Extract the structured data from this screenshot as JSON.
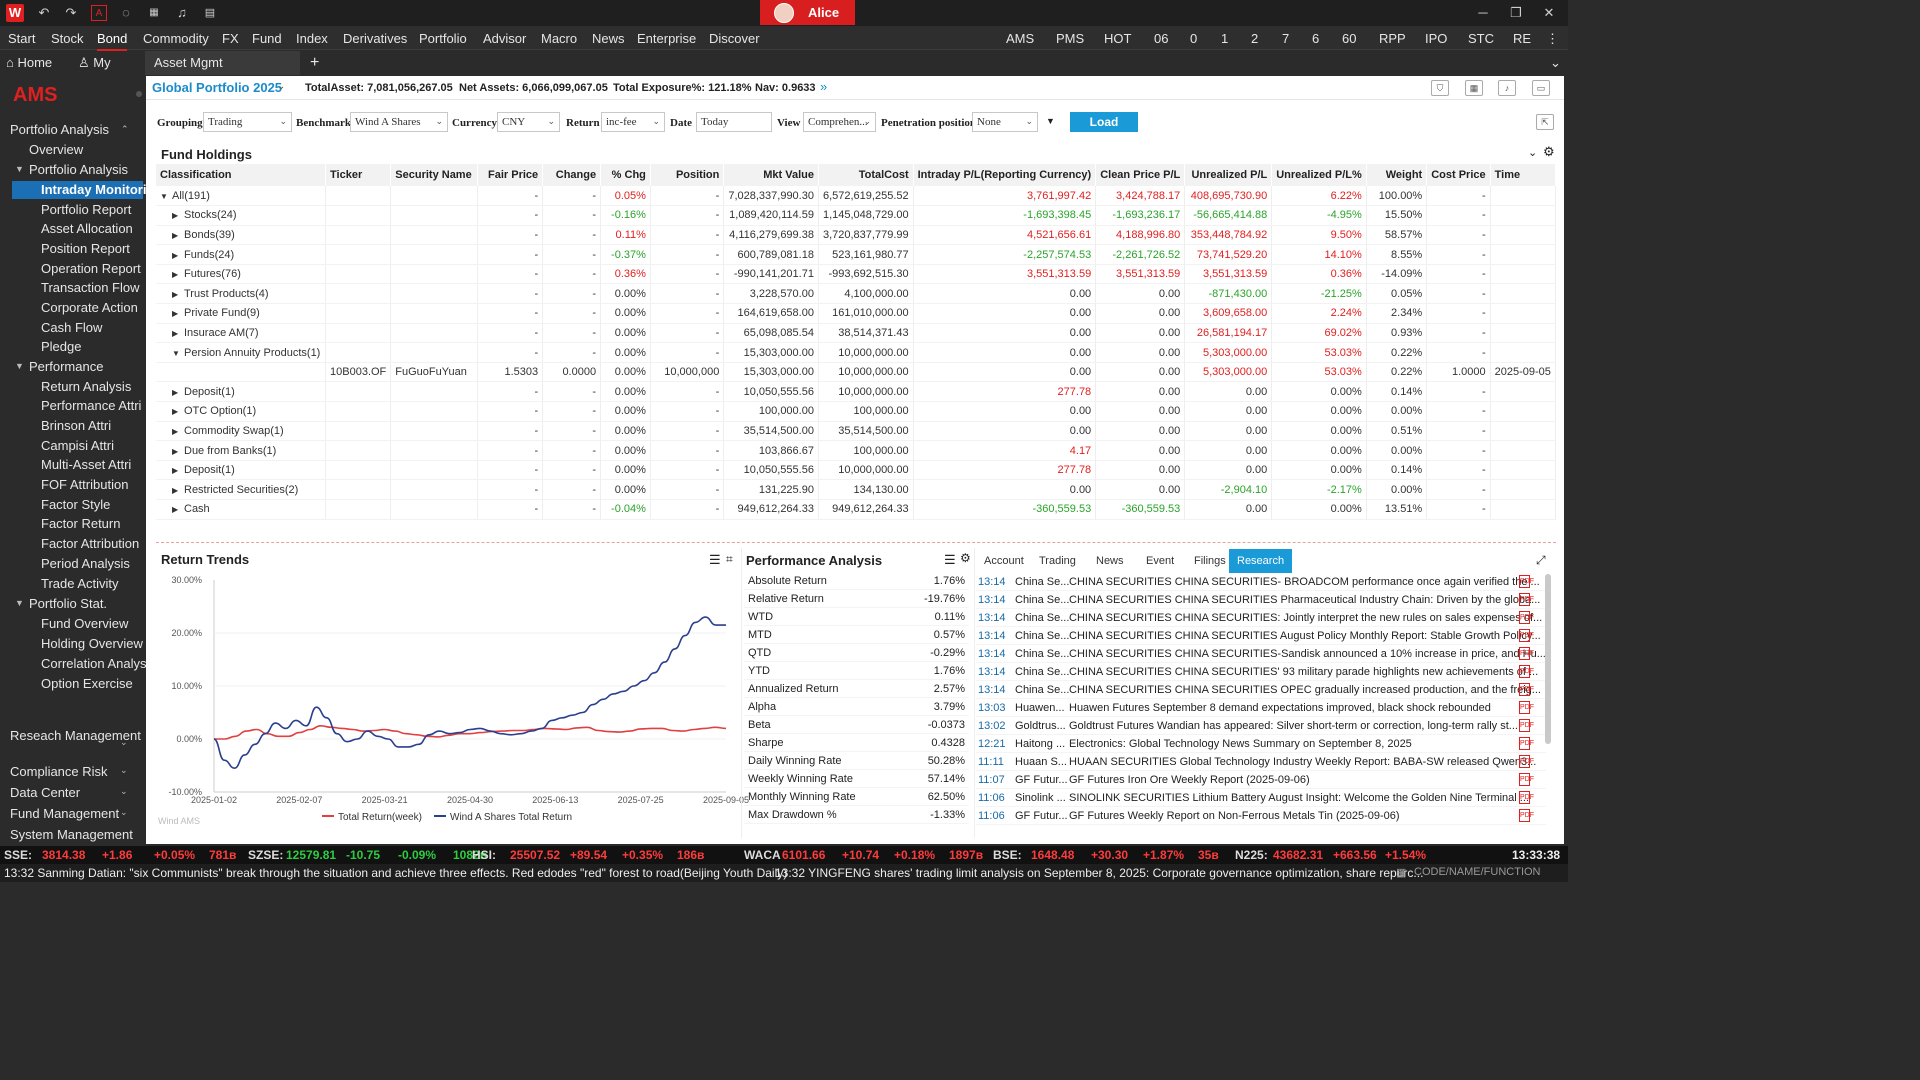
{
  "titlebar": {
    "user": "Alice",
    "logo": "W"
  },
  "menu": {
    "left": [
      "Start",
      "Stock",
      "Bond",
      "Commodity",
      "FX",
      "Fund",
      "Index",
      "Derivatives",
      "Portfolio",
      "Advisor",
      "Macro",
      "News",
      "Enterprise",
      "Discover"
    ],
    "right": [
      "AMS",
      "PMS",
      "HOT",
      "06",
      "0",
      "1",
      "2",
      "7",
      "6",
      "60",
      "RPP",
      "IPO",
      "STC",
      "RE"
    ],
    "active": "Bond"
  },
  "tabs": {
    "home": "Home",
    "my": "My",
    "asset": "Asset Mgmt",
    "add": "+"
  },
  "sidebar": {
    "brand": "AMS",
    "items": [
      {
        "label": "Portfolio Analysis",
        "level": 0,
        "caret": "up"
      },
      {
        "label": "Overview",
        "level": 1
      },
      {
        "label": "Portfolio Analysis",
        "level": 1,
        "caret": "down"
      },
      {
        "label": "Intraday Monitori",
        "level": 2,
        "selected": true
      },
      {
        "label": "Portfolio Report",
        "level": 2
      },
      {
        "label": "Asset Allocation",
        "level": 2
      },
      {
        "label": "Position Report",
        "level": 2
      },
      {
        "label": "Operation Report",
        "level": 2
      },
      {
        "label": "Transaction Flow",
        "level": 2
      },
      {
        "label": "Corporate Action",
        "level": 2
      },
      {
        "label": "Cash Flow",
        "level": 2
      },
      {
        "label": "Pledge",
        "level": 2
      },
      {
        "label": "Performance",
        "level": 1,
        "caret": "down"
      },
      {
        "label": "Return Analysis",
        "level": 2
      },
      {
        "label": "Performance Attri",
        "level": 2
      },
      {
        "label": "Brinson Attri",
        "level": 2
      },
      {
        "label": "Campisi Attri",
        "level": 2
      },
      {
        "label": "Multi-Asset Attri",
        "level": 2
      },
      {
        "label": "FOF Attribution",
        "level": 2
      },
      {
        "label": "Factor Style",
        "level": 2
      },
      {
        "label": "Factor Return",
        "level": 2
      },
      {
        "label": "Factor Attribution",
        "level": 2
      },
      {
        "label": "Period Analysis",
        "level": 2
      },
      {
        "label": "Trade Activity",
        "level": 2
      },
      {
        "label": "Portfolio Stat.",
        "level": 1,
        "caret": "down"
      },
      {
        "label": "Fund Overview",
        "level": 2
      },
      {
        "label": "Holding Overview",
        "level": 2
      },
      {
        "label": "Correlation Analysi",
        "level": 2
      },
      {
        "label": "Option Exercise",
        "level": 2
      }
    ],
    "bottom": [
      "Reseach Management",
      "Compliance Risk",
      "Data Center",
      "Fund Management",
      "System Management"
    ]
  },
  "header": {
    "portfolio": "Global Portfolio 2025",
    "total_asset": "TotalAsset: 7,081,056,267.05",
    "net_assets": "Net Assets: 6,066,099,067.05",
    "total_exposure": "Total Exposure%: 121.18%",
    "nav": "Nav: 0.9633"
  },
  "filters": {
    "grouping_label": "Grouping",
    "grouping": "Trading",
    "benchmark_label": "Benchmark",
    "benchmark": "Wind A Shares",
    "currency_label": "Currency",
    "currency": "CNY",
    "return_label": "Return",
    "return": "inc-fee",
    "date_label": "Date",
    "date": "Today",
    "view_label": "View",
    "view": "Comprehen...",
    "penetration_label": "Penetration position",
    "penetration": "None",
    "load": "Load"
  },
  "holdings": {
    "title": "Fund Holdings",
    "columns": [
      "Classification",
      "Ticker",
      "Security Name",
      "Fair Price",
      "Change",
      "% Chg",
      "Position",
      "Mkt Value",
      "TotalCost",
      "Intraday P/L(Reporting Currency)",
      "Clean Price P/L",
      "Unrealized P/L",
      "Unrealized P/L%",
      "Weight",
      "Cost Price",
      "Time"
    ],
    "rows": [
      {
        "tri": "down",
        "ind": 0,
        "c": [
          "All(191)",
          "",
          "",
          "-",
          "-",
          "0.05%",
          "-",
          "7,028,337,990.30",
          "6,572,619,255.52",
          "3,761,997.42",
          "3,424,788.17",
          "408,695,730.90",
          "6.22%",
          "100.00%",
          "-",
          ""
        ]
      },
      {
        "tri": "right",
        "ind": 1,
        "c": [
          "Stocks(24)",
          "",
          "",
          "-",
          "-",
          "-0.16%",
          "-",
          "1,089,420,114.59",
          "1,145,048,729.00",
          "-1,693,398.45",
          "-1,693,236.17",
          "-56,665,414.88",
          "-4.95%",
          "15.50%",
          "-",
          ""
        ]
      },
      {
        "tri": "right",
        "ind": 1,
        "c": [
          "Bonds(39)",
          "",
          "",
          "-",
          "-",
          "0.11%",
          "-",
          "4,116,279,699.38",
          "3,720,837,779.99",
          "4,521,656.61",
          "4,188,996.80",
          "353,448,784.92",
          "9.50%",
          "58.57%",
          "-",
          ""
        ]
      },
      {
        "tri": "right",
        "ind": 1,
        "c": [
          "Funds(24)",
          "",
          "",
          "-",
          "-",
          "-0.37%",
          "-",
          "600,789,081.18",
          "523,161,980.77",
          "-2,257,574.53",
          "-2,261,726.52",
          "73,741,529.20",
          "14.10%",
          "8.55%",
          "-",
          ""
        ]
      },
      {
        "tri": "right",
        "ind": 1,
        "c": [
          "Futures(76)",
          "",
          "",
          "-",
          "-",
          "0.36%",
          "-",
          "-990,141,201.71",
          "-993,692,515.30",
          "3,551,313.59",
          "3,551,313.59",
          "3,551,313.59",
          "0.36%",
          "-14.09%",
          "-",
          ""
        ]
      },
      {
        "tri": "right",
        "ind": 1,
        "c": [
          "Trust Products(4)",
          "",
          "",
          "-",
          "-",
          "0.00%",
          "-",
          "3,228,570.00",
          "4,100,000.00",
          "0.00",
          "0.00",
          "-871,430.00",
          "-21.25%",
          "0.05%",
          "-",
          ""
        ]
      },
      {
        "tri": "right",
        "ind": 1,
        "c": [
          "Private Fund(9)",
          "",
          "",
          "-",
          "-",
          "0.00%",
          "-",
          "164,619,658.00",
          "161,010,000.00",
          "0.00",
          "0.00",
          "3,609,658.00",
          "2.24%",
          "2.34%",
          "-",
          ""
        ]
      },
      {
        "tri": "right",
        "ind": 1,
        "c": [
          "Insurace AM(7)",
          "",
          "",
          "-",
          "-",
          "0.00%",
          "-",
          "65,098,085.54",
          "38,514,371.43",
          "0.00",
          "0.00",
          "26,581,194.17",
          "69.02%",
          "0.93%",
          "-",
          ""
        ]
      },
      {
        "tri": "down",
        "ind": 1,
        "c": [
          "Persion Annuity Products(1)",
          "",
          "",
          "-",
          "-",
          "0.00%",
          "-",
          "15,303,000.00",
          "10,000,000.00",
          "0.00",
          "0.00",
          "5,303,000.00",
          "53.03%",
          "0.22%",
          "-",
          ""
        ]
      },
      {
        "tri": "",
        "ind": 2,
        "c": [
          "",
          "10B003.OF",
          "FuGuoFuYuan",
          "1.5303",
          "0.0000",
          "0.00%",
          "10,000,000",
          "15,303,000.00",
          "10,000,000.00",
          "0.00",
          "0.00",
          "5,303,000.00",
          "53.03%",
          "0.22%",
          "1.0000",
          "2025-09-05"
        ]
      },
      {
        "tri": "right",
        "ind": 1,
        "c": [
          "Deposit(1)",
          "",
          "",
          "-",
          "-",
          "0.00%",
          "-",
          "10,050,555.56",
          "10,000,000.00",
          "277.78",
          "0.00",
          "0.00",
          "0.00%",
          "0.14%",
          "-",
          ""
        ]
      },
      {
        "tri": "right",
        "ind": 1,
        "c": [
          "OTC Option(1)",
          "",
          "",
          "-",
          "-",
          "0.00%",
          "-",
          "100,000.00",
          "100,000.00",
          "0.00",
          "0.00",
          "0.00",
          "0.00%",
          "0.00%",
          "-",
          ""
        ]
      },
      {
        "tri": "right",
        "ind": 1,
        "c": [
          "Commodity Swap(1)",
          "",
          "",
          "-",
          "-",
          "0.00%",
          "-",
          "35,514,500.00",
          "35,514,500.00",
          "0.00",
          "0.00",
          "0.00",
          "0.00%",
          "0.51%",
          "-",
          ""
        ]
      },
      {
        "tri": "right",
        "ind": 1,
        "c": [
          "Due from Banks(1)",
          "",
          "",
          "-",
          "-",
          "0.00%",
          "-",
          "103,866.67",
          "100,000.00",
          "4.17",
          "0.00",
          "0.00",
          "0.00%",
          "0.00%",
          "-",
          ""
        ]
      },
      {
        "tri": "right",
        "ind": 1,
        "c": [
          "Deposit(1)",
          "",
          "",
          "-",
          "-",
          "0.00%",
          "-",
          "10,050,555.56",
          "10,000,000.00",
          "277.78",
          "0.00",
          "0.00",
          "0.00%",
          "0.14%",
          "-",
          ""
        ]
      },
      {
        "tri": "right",
        "ind": 1,
        "c": [
          "Restricted Securities(2)",
          "",
          "",
          "-",
          "-",
          "0.00%",
          "-",
          "131,225.90",
          "134,130.00",
          "0.00",
          "0.00",
          "-2,904.10",
          "-2.17%",
          "0.00%",
          "-",
          ""
        ]
      },
      {
        "tri": "right",
        "ind": 1,
        "c": [
          "Cash",
          "",
          "",
          "-",
          "-",
          "-0.04%",
          "-",
          "949,612,264.33",
          "949,612,264.33",
          "-360,559.53",
          "-360,559.53",
          "0.00",
          "0.00%",
          "13.51%",
          "-",
          ""
        ]
      }
    ]
  },
  "return_trends": {
    "title": "Return Trends",
    "watermark": "Wind AMS"
  },
  "chart_data": {
    "type": "line",
    "title": "Return Trends",
    "x_ticks": [
      "2025-01-02",
      "2025-02-07",
      "2025-03-21",
      "2025-04-30",
      "2025-06-13",
      "2025-07-25",
      "2025-09-05"
    ],
    "y_ticks": [
      "30.00%",
      "20.00%",
      "10.00%",
      "0.00%",
      "-10.00%"
    ],
    "ylim": [
      -10,
      30
    ],
    "legend_position": "bottom",
    "series": [
      {
        "name": "Total Return(week)",
        "color": "#e04040",
        "values": [
          0.0,
          0.0,
          0.5,
          1.5,
          1.8,
          1.0,
          0.5,
          0.5,
          1.2,
          1.8,
          2.5,
          2.2,
          2.0,
          1.8,
          1.5,
          1.6,
          1.8,
          1.5,
          1.0,
          0.8,
          0.5,
          0.4,
          0.7,
          1.0,
          1.0,
          1.2,
          1.4,
          1.5,
          1.6,
          1.6,
          1.8,
          2.0,
          1.9,
          1.8,
          2.1,
          2.2,
          1.6,
          1.4,
          1.3,
          1.5,
          1.9,
          2.0,
          2.0,
          1.6,
          1.5,
          1.8,
          2.0,
          2.2,
          2.0
        ]
      },
      {
        "name": "Wind A Shares Total Return",
        "color": "#2a3f8f",
        "values": [
          0.0,
          -4.0,
          -5.5,
          -3.0,
          -1.0,
          1.0,
          3.0,
          2.0,
          3.5,
          2.5,
          6.0,
          4.0,
          1.0,
          -0.5,
          0.0,
          1.5,
          0.5,
          0.0,
          -1.5,
          -1.5,
          -1.0,
          0.8,
          1.5,
          1.0,
          1.2,
          1.8,
          2.0,
          1.5,
          1.0,
          0.8,
          1.0,
          1.5,
          2.0,
          3.5,
          4.0,
          4.5,
          5.0,
          6.5,
          7.5,
          8.5,
          9.0,
          10.0,
          11.0,
          12.5,
          14.5,
          17.0,
          19.5,
          22.0,
          23.0,
          21.5,
          21.5
        ]
      }
    ]
  },
  "performance": {
    "title": "Performance Analysis",
    "rows": [
      {
        "k": "Absolute Return",
        "v": "1.76%"
      },
      {
        "k": "Relative Return",
        "v": "-19.76%"
      },
      {
        "k": "WTD",
        "v": "0.11%"
      },
      {
        "k": "MTD",
        "v": "0.57%"
      },
      {
        "k": "QTD",
        "v": "-0.29%"
      },
      {
        "k": "YTD",
        "v": "1.76%"
      },
      {
        "k": "Annualized Return",
        "v": "2.57%"
      },
      {
        "k": "Alpha",
        "v": "3.79%"
      },
      {
        "k": "Beta",
        "v": "-0.0373"
      },
      {
        "k": "Sharpe",
        "v": "0.4328"
      },
      {
        "k": "Daily Winning Rate",
        "v": "50.28%"
      },
      {
        "k": "Weekly Winning Rate",
        "v": "57.14%"
      },
      {
        "k": "Monthly Winning Rate",
        "v": "62.50%"
      },
      {
        "k": "Max Drawdown %",
        "v": "-1.33%"
      }
    ]
  },
  "research": {
    "tabs": [
      "Account",
      "Trading",
      "News",
      "Event",
      "Filings",
      "Research"
    ],
    "active": "Research",
    "pdf": "PDF",
    "rows": [
      {
        "t": "13:14",
        "s": "China Se...",
        "h": "CHINA SECURITIES CHINA SECURITIES- BROADCOM performance once again verified the ..."
      },
      {
        "t": "13:14",
        "s": "China Se...",
        "h": "CHINA SECURITIES CHINA SECURITIES Pharmaceutical Industry Chain: Driven by the globa..."
      },
      {
        "t": "13:14",
        "s": "China Se...",
        "h": "CHINA SECURITIES CHINA SECURITIES: Jointly interpret the new rules on sales expenses of..."
      },
      {
        "t": "13:14",
        "s": "China Se...",
        "h": "CHINA SECURITIES CHINA SECURITIES August Policy Monthly Report: Stable Growth Policy..."
      },
      {
        "t": "13:14",
        "s": "China Se...",
        "h": "CHINA SECURITIES CHINA SECURITIES-Sandisk announced a 10% increase in price, and Hu..."
      },
      {
        "t": "13:14",
        "s": "China Se...",
        "h": "CHINA SECURITIES CHINA SECURITIES' 93 military parade highlights new achievements of ..."
      },
      {
        "t": "13:14",
        "s": "China Se...",
        "h": "CHINA SECURITIES CHINA SECURITIES OPEC gradually increased production, and the freig..."
      },
      {
        "t": "13:03",
        "s": "Huawen...",
        "h": "Huawen Futures September 8 demand expectations improved, black shock rebounded"
      },
      {
        "t": "13:02",
        "s": "Goldtrus...",
        "h": "Goldtrust Futures Wandian has appeared: Silver short-term or correction, long-term rally st..."
      },
      {
        "t": "12:21",
        "s": "Haitong ...",
        "h": "Electronics: Global Technology News Summary on September 8, 2025"
      },
      {
        "t": "11:11",
        "s": "Huaan S...",
        "h": "HUAAN SECURITIES Global Technology Industry Weekly Report: BABA-SW released Qwen3..."
      },
      {
        "t": "11:07",
        "s": "GF Futur...",
        "h": "GF Futures Iron Ore Weekly Report (2025-09-06)"
      },
      {
        "t": "11:06",
        "s": "Sinolink ...",
        "h": "SINOLINK SECURITIES Lithium Battery August Insight: Welcome the Golden Nine Terminal ..."
      },
      {
        "t": "11:06",
        "s": "GF Futur...",
        "h": "GF Futures Weekly Report on Non-Ferrous Metals Tin (2025-09-06)"
      }
    ]
  },
  "ticker": [
    {
      "n": "SSE:",
      "v": "3814.38",
      "c": "+1.86",
      "p": "+0.05%",
      "a": "781в"
    },
    {
      "n": "SZSE:",
      "v": "12579.81",
      "c": "-10.75",
      "p": "-0.09%",
      "a": "1082в"
    },
    {
      "n": "HSI:",
      "v": "25507.52",
      "c": "+89.54",
      "p": "+0.35%",
      "a": "186в"
    },
    {
      "n": "WACA",
      "v": "6101.66",
      "c": "+10.74",
      "p": "+0.18%",
      "a": "1897в"
    },
    {
      "n": "BSE:",
      "v": "1648.48",
      "c": "+30.30",
      "p": "+1.87%",
      "a": "35в"
    },
    {
      "n": "N225:",
      "v": "43682.31",
      "c": "+663.56",
      "p": "+1.54%",
      "a": ""
    }
  ],
  "clock": "13:33:38",
  "status": {
    "news1": "13:32  Sanming Datian: \"six Communists\" break through the situation and achieve three effects. Red edodes \"red\" forest to road(Beijing Youth Daily)",
    "news2": "13:32  YINGFENG shares' trading limit analysis on September 8, 2025: Corporate governance optimization, share repurc...",
    "code": "CODE/NAME/FUNCTION"
  }
}
